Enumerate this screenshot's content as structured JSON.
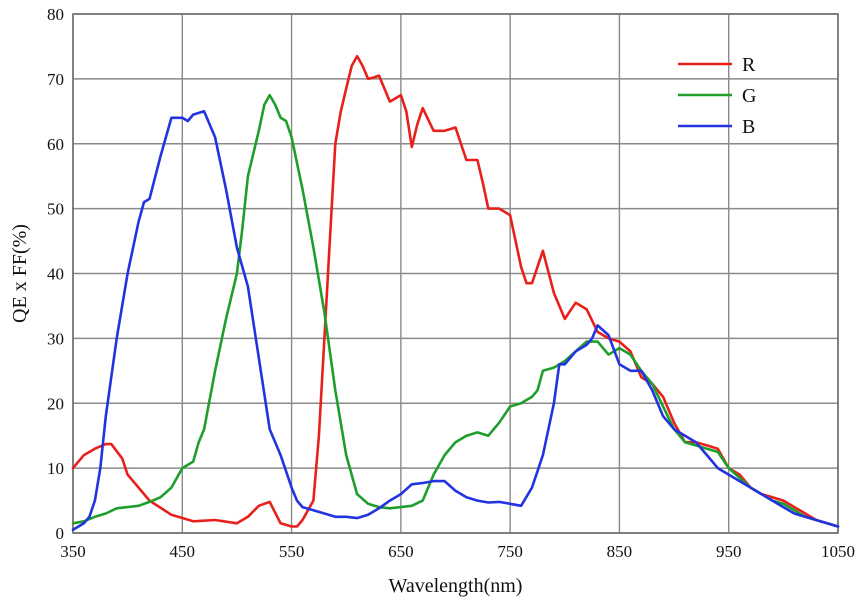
{
  "chart_data": {
    "type": "line",
    "xlabel": "Wavelength(nm)",
    "ylabel": "QE x FF(%)",
    "xlim": [
      350,
      1050
    ],
    "ylim": [
      0,
      80
    ],
    "xticks": [
      350,
      450,
      550,
      650,
      750,
      850,
      950,
      1050
    ],
    "yticks": [
      0,
      10,
      20,
      30,
      40,
      50,
      60,
      70,
      80
    ],
    "grid": true,
    "legend_position": "top-right",
    "series": [
      {
        "name": "R",
        "color": "#e8201c",
        "x": [
          350,
          360,
          370,
          380,
          385,
          395,
          400,
          420,
          440,
          460,
          480,
          500,
          510,
          520,
          530,
          540,
          550,
          555,
          560,
          570,
          575,
          580,
          585,
          590,
          595,
          600,
          605,
          610,
          615,
          620,
          625,
          630,
          640,
          650,
          655,
          660,
          665,
          670,
          680,
          690,
          700,
          710,
          720,
          725,
          730,
          740,
          750,
          755,
          760,
          765,
          770,
          780,
          790,
          800,
          810,
          820,
          830,
          840,
          850,
          860,
          870,
          880,
          890,
          900,
          910,
          920,
          930,
          940,
          950,
          960,
          970,
          980,
          990,
          1000,
          1010,
          1020,
          1030,
          1040,
          1050
        ],
        "values": [
          10,
          12,
          13,
          13.7,
          13.7,
          11.5,
          9,
          5,
          2.8,
          1.8,
          2,
          1.5,
          2.5,
          4.2,
          4.8,
          1.5,
          1,
          1,
          2,
          5,
          15,
          30,
          45,
          60,
          65,
          68.5,
          72,
          73.5,
          72,
          70,
          70.2,
          70.5,
          66.5,
          67.5,
          65,
          59.5,
          63,
          65.5,
          62,
          62,
          62.5,
          57.5,
          57.5,
          54,
          50,
          50,
          49,
          45,
          41,
          38.5,
          38.5,
          43.5,
          37,
          33,
          35.5,
          34.5,
          31,
          30,
          29.5,
          28,
          24,
          23,
          21,
          17,
          14,
          14,
          13.5,
          13,
          10,
          9,
          7,
          6,
          5.5,
          5,
          4,
          3,
          2,
          1.5,
          1
        ]
      },
      {
        "name": "G",
        "color": "#1e9f2c",
        "x": [
          350,
          360,
          370,
          380,
          390,
          400,
          410,
          420,
          430,
          440,
          450,
          460,
          465,
          470,
          480,
          490,
          500,
          505,
          510,
          520,
          525,
          530,
          535,
          540,
          545,
          550,
          560,
          570,
          580,
          590,
          600,
          610,
          620,
          630,
          640,
          650,
          660,
          670,
          680,
          690,
          700,
          710,
          720,
          730,
          740,
          750,
          760,
          770,
          775,
          780,
          790,
          800,
          810,
          820,
          830,
          840,
          850,
          860,
          870,
          880,
          890,
          900,
          910,
          920,
          930,
          940,
          950,
          960,
          970,
          980,
          990,
          1000,
          1010,
          1020,
          1030,
          1040,
          1050
        ],
        "values": [
          1.5,
          1.8,
          2.5,
          3,
          3.8,
          4,
          4.2,
          4.8,
          5.5,
          7,
          10,
          11,
          14,
          16,
          25,
          33,
          40,
          47,
          55,
          62,
          66,
          67.5,
          66,
          64,
          63.5,
          61,
          53,
          44,
          34,
          22,
          12,
          6,
          4.5,
          4,
          3.8,
          4,
          4.2,
          5,
          9,
          12,
          14,
          15,
          15.5,
          15,
          17,
          19.5,
          20,
          21,
          22,
          25,
          25.5,
          26.5,
          28,
          29.5,
          29.5,
          27.5,
          28.5,
          27.5,
          25,
          23,
          19.5,
          16,
          14,
          13.5,
          13,
          12.5,
          10,
          8.5,
          7,
          6,
          5,
          4.5,
          3.5,
          2.5,
          2,
          1.5,
          1
        ]
      },
      {
        "name": "B",
        "color": "#2233e0",
        "x": [
          350,
          360,
          365,
          370,
          375,
          380,
          390,
          400,
          410,
          415,
          420,
          430,
          440,
          450,
          455,
          460,
          470,
          480,
          490,
          500,
          510,
          520,
          530,
          540,
          550,
          555,
          560,
          570,
          580,
          590,
          600,
          610,
          620,
          630,
          640,
          650,
          660,
          670,
          680,
          690,
          700,
          710,
          720,
          730,
          740,
          750,
          760,
          770,
          780,
          790,
          795,
          800,
          810,
          820,
          825,
          830,
          840,
          850,
          860,
          870,
          880,
          890,
          900,
          910,
          920,
          930,
          940,
          950,
          960,
          970,
          980,
          990,
          1000,
          1010,
          1020,
          1030,
          1040,
          1050
        ],
        "values": [
          0.5,
          1.5,
          2.5,
          5,
          10,
          18,
          30,
          40,
          48,
          51,
          51.5,
          58,
          64,
          64,
          63.5,
          64.5,
          65,
          61,
          53,
          44,
          38,
          27,
          16,
          12,
          7,
          5,
          4,
          3.5,
          3,
          2.5,
          2.5,
          2.3,
          2.8,
          3.8,
          5,
          6,
          7.5,
          7.7,
          8,
          8,
          6.5,
          5.5,
          5,
          4.7,
          4.8,
          4.5,
          4.2,
          7,
          12,
          20,
          26,
          26,
          28,
          29,
          30,
          32,
          30.5,
          26,
          25,
          25,
          22,
          18,
          16,
          15,
          14,
          12,
          10,
          9,
          8,
          7,
          6,
          5,
          4,
          3,
          2.5,
          2,
          1.5,
          1
        ]
      }
    ]
  }
}
